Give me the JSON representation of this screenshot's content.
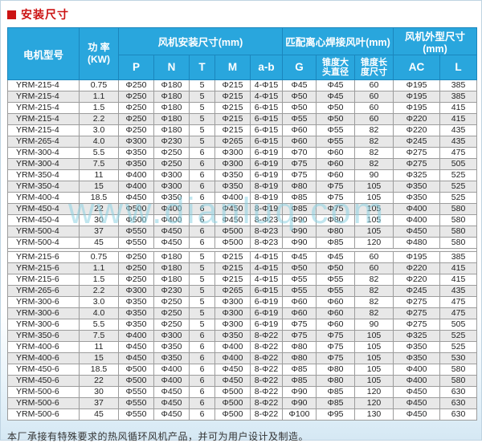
{
  "page": {
    "title": "安装尺寸",
    "watermark": "www.dianluq.com",
    "footer": "本厂承接有特殊要求的热风循环风机产品，并可为用户设计及制造。"
  },
  "colors": {
    "title_red": "#cc1313",
    "header_blue": "#29a6dd",
    "header_border": "#1b86bd",
    "row_alt_gray": "#e8e8e8",
    "watermark_cyan": "#8ed2e2"
  },
  "table": {
    "header": {
      "motor_model": "电机型号",
      "power_line1": "功 率",
      "power_line2": "(KW)",
      "group_install": "风机安装尺寸(mm)",
      "install_cols": [
        "P",
        "N",
        "T",
        "M",
        "a-b"
      ],
      "group_blade": "匹配离心焊接风叶(mm)",
      "blade_cols": [
        "G",
        "锥度大头直径",
        "锥度长度尺寸"
      ],
      "group_outline": "风机外型尺寸(mm)",
      "outline_cols": [
        "AC",
        "L"
      ]
    },
    "groups": [
      {
        "rows": [
          [
            "YRM-215-4",
            "0.75",
            "Φ250",
            "Φ180",
            "5",
            "Φ215",
            "4-Φ15",
            "Φ45",
            "Φ45",
            "60",
            "Φ195",
            "385"
          ],
          [
            "YRM-215-4",
            "1.1",
            "Φ250",
            "Φ180",
            "5",
            "Φ215",
            "4-Φ15",
            "Φ50",
            "Φ45",
            "60",
            "Φ195",
            "385"
          ],
          [
            "YRM-215-4",
            "1.5",
            "Φ250",
            "Φ180",
            "5",
            "Φ215",
            "6-Φ15",
            "Φ50",
            "Φ50",
            "60",
            "Φ195",
            "415"
          ],
          [
            "YRM-215-4",
            "2.2",
            "Φ250",
            "Φ180",
            "5",
            "Φ215",
            "6-Φ15",
            "Φ55",
            "Φ50",
            "60",
            "Φ220",
            "415"
          ],
          [
            "YRM-215-4",
            "3.0",
            "Φ250",
            "Φ180",
            "5",
            "Φ215",
            "6-Φ15",
            "Φ60",
            "Φ55",
            "82",
            "Φ220",
            "435"
          ],
          [
            "YRM-265-4",
            "4.0",
            "Φ300",
            "Φ230",
            "5",
            "Φ265",
            "6-Φ15",
            "Φ60",
            "Φ55",
            "82",
            "Φ245",
            "435"
          ],
          [
            "YRM-300-4",
            "5.5",
            "Φ350",
            "Φ250",
            "6",
            "Φ300",
            "6-Φ19",
            "Φ70",
            "Φ60",
            "82",
            "Φ275",
            "475"
          ],
          [
            "YRM-300-4",
            "7.5",
            "Φ350",
            "Φ250",
            "6",
            "Φ300",
            "6-Φ19",
            "Φ75",
            "Φ60",
            "82",
            "Φ275",
            "505"
          ],
          [
            "YRM-350-4",
            "11",
            "Φ400",
            "Φ300",
            "6",
            "Φ350",
            "6-Φ19",
            "Φ75",
            "Φ60",
            "90",
            "Φ325",
            "525"
          ],
          [
            "YRM-350-4",
            "15",
            "Φ400",
            "Φ300",
            "6",
            "Φ350",
            "8-Φ19",
            "Φ80",
            "Φ75",
            "105",
            "Φ350",
            "525"
          ],
          [
            "YRM-400-4",
            "18.5",
            "Φ450",
            "Φ350",
            "6",
            "Φ400",
            "8-Φ19",
            "Φ85",
            "Φ75",
            "105",
            "Φ350",
            "525"
          ],
          [
            "YRM-450-4",
            "22",
            "Φ500",
            "Φ400",
            "6",
            "Φ450",
            "8-Φ19",
            "Φ85",
            "Φ75",
            "105",
            "Φ400",
            "580"
          ],
          [
            "YRM-450-4",
            "30",
            "Φ500",
            "Φ400",
            "6",
            "Φ450",
            "8-Φ23",
            "Φ90",
            "Φ80",
            "105",
            "Φ400",
            "580"
          ],
          [
            "YRM-500-4",
            "37",
            "Φ550",
            "Φ450",
            "6",
            "Φ500",
            "8-Φ23",
            "Φ90",
            "Φ80",
            "105",
            "Φ450",
            "580"
          ],
          [
            "YRM-500-4",
            "45",
            "Φ550",
            "Φ450",
            "6",
            "Φ500",
            "8-Φ23",
            "Φ90",
            "Φ85",
            "120",
            "Φ480",
            "580"
          ]
        ]
      },
      {
        "rows": [
          [
            "YRM-215-6",
            "0.75",
            "Φ250",
            "Φ180",
            "5",
            "Φ215",
            "4-Φ15",
            "Φ45",
            "Φ45",
            "60",
            "Φ195",
            "385"
          ],
          [
            "YRM-215-6",
            "1.1",
            "Φ250",
            "Φ180",
            "5",
            "Φ215",
            "4-Φ15",
            "Φ50",
            "Φ50",
            "60",
            "Φ220",
            "415"
          ],
          [
            "YRM-215-6",
            "1.5",
            "Φ250",
            "Φ180",
            "5",
            "Φ215",
            "4-Φ15",
            "Φ55",
            "Φ55",
            "82",
            "Φ220",
            "415"
          ],
          [
            "YRM-265-6",
            "2.2",
            "Φ300",
            "Φ230",
            "5",
            "Φ265",
            "6-Φ15",
            "Φ55",
            "Φ55",
            "82",
            "Φ245",
            "435"
          ],
          [
            "YRM-300-6",
            "3.0",
            "Φ350",
            "Φ250",
            "5",
            "Φ300",
            "6-Φ19",
            "Φ60",
            "Φ60",
            "82",
            "Φ275",
            "475"
          ],
          [
            "YRM-300-6",
            "4.0",
            "Φ350",
            "Φ250",
            "5",
            "Φ300",
            "6-Φ19",
            "Φ60",
            "Φ60",
            "82",
            "Φ275",
            "475"
          ],
          [
            "YRM-300-6",
            "5.5",
            "Φ350",
            "Φ250",
            "5",
            "Φ300",
            "6-Φ19",
            "Φ75",
            "Φ60",
            "90",
            "Φ275",
            "505"
          ],
          [
            "YRM-350-6",
            "7.5",
            "Φ400",
            "Φ300",
            "6",
            "Φ350",
            "8-Φ22",
            "Φ75",
            "Φ75",
            "105",
            "Φ325",
            "525"
          ],
          [
            "YRM-400-6",
            "11",
            "Φ450",
            "Φ350",
            "6",
            "Φ400",
            "8-Φ22",
            "Φ80",
            "Φ75",
            "105",
            "Φ350",
            "525"
          ],
          [
            "YRM-400-6",
            "15",
            "Φ450",
            "Φ350",
            "6",
            "Φ400",
            "8-Φ22",
            "Φ80",
            "Φ75",
            "105",
            "Φ350",
            "530"
          ],
          [
            "YRM-450-6",
            "18.5",
            "Φ500",
            "Φ400",
            "6",
            "Φ450",
            "8-Φ22",
            "Φ85",
            "Φ80",
            "105",
            "Φ400",
            "580"
          ],
          [
            "YRM-450-6",
            "22",
            "Φ500",
            "Φ400",
            "6",
            "Φ450",
            "8-Φ22",
            "Φ85",
            "Φ80",
            "105",
            "Φ400",
            "580"
          ],
          [
            "YRM-500-6",
            "30",
            "Φ550",
            "Φ450",
            "6",
            "Φ500",
            "8-Φ22",
            "Φ90",
            "Φ85",
            "120",
            "Φ450",
            "630"
          ],
          [
            "YRM-500-6",
            "37",
            "Φ550",
            "Φ450",
            "6",
            "Φ500",
            "8-Φ22",
            "Φ90",
            "Φ85",
            "120",
            "Φ450",
            "630"
          ],
          [
            "YRM-500-6",
            "45",
            "Φ550",
            "Φ450",
            "6",
            "Φ500",
            "8-Φ22",
            "Φ100",
            "Φ95",
            "130",
            "Φ450",
            "630"
          ]
        ]
      }
    ]
  }
}
